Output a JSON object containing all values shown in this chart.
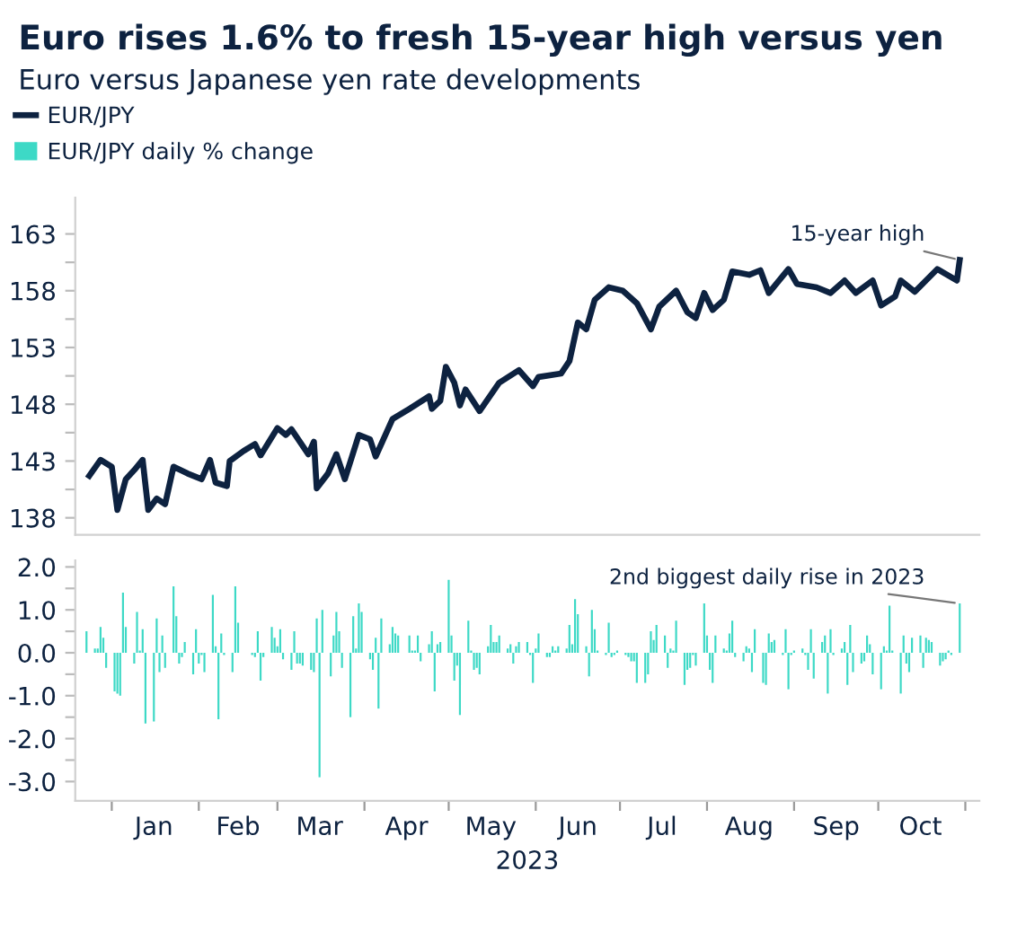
{
  "chart_data": [
    {
      "type": "line",
      "title": "Euro rises 1.6% to fresh 15-year high versus yen",
      "subtitle": "Euro versus Japanese yen rate developments",
      "legend": "top left",
      "grid": false,
      "tick_labels": "y",
      "line_style": "solid",
      "xlim": [
        "2022-12-19",
        "2023-11-06"
      ],
      "ylim": [
        136.5,
        166.2
      ],
      "yticks": [
        138,
        {
          "value": 140.5,
          "label": null
        },
        143,
        {
          "value": 145.5,
          "label": null
        },
        148,
        {
          "value": 150.5,
          "label": null
        },
        153,
        {
          "value": 155.5,
          "label": null
        },
        158,
        {
          "value": 160.5,
          "label": null
        },
        163
      ],
      "annotations": [
        {
          "text": "15-year high",
          "x": "2023-10-30",
          "y": 160.7
        }
      ],
      "series": [
        {
          "name": "EUR/JPY",
          "color": "#0d2240",
          "x": [
            "2022-12-24",
            "2022-12-28",
            "2023-01-01",
            "2023-01-03",
            "2023-01-06",
            "2023-01-09",
            "2023-01-12",
            "2023-01-14",
            "2023-01-17",
            "2023-01-20",
            "2023-01-23",
            "2023-01-28",
            "2023-02-02",
            "2023-02-05",
            "2023-02-07",
            "2023-02-11",
            "2023-02-12",
            "2023-02-17",
            "2023-02-21",
            "2023-02-23",
            "2023-03-01",
            "2023-03-04",
            "2023-03-06",
            "2023-03-12",
            "2023-03-14",
            "2023-03-15",
            "2023-03-19",
            "2023-03-22",
            "2023-03-25",
            "2023-03-30",
            "2023-04-03",
            "2023-04-05",
            "2023-04-11",
            "2023-04-17",
            "2023-04-24",
            "2023-04-25",
            "2023-04-28",
            "2023-04-30",
            "2023-05-03",
            "2023-05-05",
            "2023-05-07",
            "2023-05-12",
            "2023-05-19",
            "2023-05-26",
            "2023-05-31",
            "2023-06-02",
            "2023-06-10",
            "2023-06-13",
            "2023-06-16",
            "2023-06-19",
            "2023-06-22",
            "2023-06-27",
            "2023-07-02",
            "2023-07-07",
            "2023-07-12",
            "2023-07-15",
            "2023-07-21",
            "2023-07-25",
            "2023-07-28",
            "2023-07-31",
            "2023-08-03",
            "2023-08-07",
            "2023-08-10",
            "2023-08-16",
            "2023-08-20",
            "2023-08-23",
            "2023-08-30",
            "2023-09-02",
            "2023-09-09",
            "2023-09-14",
            "2023-09-19",
            "2023-09-23",
            "2023-09-29",
            "2023-10-02",
            "2023-10-07",
            "2023-10-09",
            "2023-10-14",
            "2023-10-22",
            "2023-10-29",
            "2023-10-30"
          ],
          "values": [
            141.7,
            143.1,
            142.5,
            138.7,
            141.4,
            142.2,
            143.1,
            138.7,
            139.7,
            139.2,
            142.5,
            141.9,
            141.4,
            143.1,
            141.1,
            140.8,
            143.0,
            143.9,
            144.5,
            143.5,
            145.9,
            145.3,
            145.8,
            143.6,
            144.7,
            140.6,
            141.9,
            143.6,
            141.4,
            145.3,
            144.9,
            143.4,
            146.7,
            147.6,
            148.7,
            147.6,
            148.3,
            151.3,
            149.9,
            147.9,
            149.3,
            147.4,
            149.9,
            151.0,
            149.6,
            150.4,
            150.7,
            151.8,
            155.2,
            154.6,
            157.2,
            158.3,
            158.0,
            156.9,
            154.6,
            156.6,
            158.0,
            156.1,
            155.6,
            157.8,
            156.3,
            157.2,
            159.7,
            159.4,
            159.8,
            157.8,
            159.9,
            158.6,
            158.3,
            157.8,
            158.9,
            157.8,
            158.9,
            156.7,
            157.5,
            158.9,
            157.9,
            159.9,
            158.9,
            160.7
          ]
        }
      ]
    },
    {
      "type": "bar",
      "xlabel": "2023",
      "legend": "top left",
      "grid": false,
      "xlim": [
        "2022-12-19",
        "2023-11-06"
      ],
      "ylim": [
        -3.45,
        2.15
      ],
      "yticks": [
        {
          "value": -3.0,
          "label": "-3.0"
        },
        {
          "value": -2.5,
          "label": null
        },
        {
          "value": -2.0,
          "label": "-2.0"
        },
        {
          "value": -1.5,
          "label": null
        },
        {
          "value": -1.0,
          "label": "-1.0"
        },
        {
          "value": -0.5,
          "label": null
        },
        {
          "value": 0,
          "label": "0.0"
        },
        {
          "value": 0.5,
          "label": null
        },
        {
          "value": 1.0,
          "label": "1.0"
        },
        {
          "value": 1.5,
          "label": null
        },
        {
          "value": 2.0,
          "label": "2.0"
        }
      ],
      "xticks": [
        {
          "value": "2023-01-01",
          "label": null
        },
        {
          "value": "2023-01-16",
          "label": "Jan"
        },
        {
          "value": "2023-02-01",
          "label": null
        },
        {
          "value": "2023-02-15",
          "label": "Feb"
        },
        {
          "value": "2023-03-01",
          "label": null
        },
        {
          "value": "2023-03-16",
          "label": "Mar"
        },
        {
          "value": "2023-04-01",
          "label": null
        },
        {
          "value": "2023-04-16",
          "label": "Apr"
        },
        {
          "value": "2023-05-01",
          "label": null
        },
        {
          "value": "2023-05-16",
          "label": "May"
        },
        {
          "value": "2023-06-01",
          "label": null
        },
        {
          "value": "2023-06-16",
          "label": "Jun"
        },
        {
          "value": "2023-07-01",
          "label": null
        },
        {
          "value": "2023-07-16",
          "label": "Jul"
        },
        {
          "value": "2023-08-01",
          "label": null
        },
        {
          "value": "2023-08-16",
          "label": "Aug"
        },
        {
          "value": "2023-09-01",
          "label": null
        },
        {
          "value": "2023-09-16",
          "label": "Sep"
        },
        {
          "value": "2023-10-01",
          "label": null
        },
        {
          "value": "2023-10-16",
          "label": "Oct"
        },
        {
          "value": "2023-11-01",
          "label": null
        }
      ],
      "annotations": [
        {
          "text": "2nd biggest daily rise in 2023",
          "x": "2023-10-30",
          "y": 1.15
        }
      ],
      "series": [
        {
          "name": "EUR/JPY daily % change",
          "color": "#3dd9c6",
          "x": [
            "2022-12-23",
            "2022-12-26",
            "2022-12-27",
            "2022-12-28",
            "2022-12-29",
            "2022-12-30",
            "2023-01-02",
            "2023-01-03",
            "2023-01-04",
            "2023-01-05",
            "2023-01-06",
            "2023-01-09",
            "2023-01-10",
            "2023-01-11",
            "2023-01-12",
            "2023-01-13",
            "2023-01-16",
            "2023-01-17",
            "2023-01-18",
            "2023-01-19",
            "2023-01-20",
            "2023-01-23",
            "2023-01-24",
            "2023-01-25",
            "2023-01-26",
            "2023-01-27",
            "2023-01-30",
            "2023-01-31",
            "2023-02-01",
            "2023-02-02",
            "2023-02-03",
            "2023-02-06",
            "2023-02-07",
            "2023-02-08",
            "2023-02-09",
            "2023-02-10",
            "2023-02-13",
            "2023-02-14",
            "2023-02-15",
            "2023-02-16",
            "2023-02-17",
            "2023-02-20",
            "2023-02-21",
            "2023-02-22",
            "2023-02-23",
            "2023-02-24",
            "2023-02-27",
            "2023-02-28",
            "2023-03-01",
            "2023-03-02",
            "2023-03-03",
            "2023-03-06",
            "2023-03-07",
            "2023-03-08",
            "2023-03-09",
            "2023-03-10",
            "2023-03-13",
            "2023-03-14",
            "2023-03-15",
            "2023-03-16",
            "2023-03-17",
            "2023-03-20",
            "2023-03-21",
            "2023-03-22",
            "2023-03-23",
            "2023-03-24",
            "2023-03-27",
            "2023-03-28",
            "2023-03-29",
            "2023-03-30",
            "2023-03-31",
            "2023-04-03",
            "2023-04-04",
            "2023-04-05",
            "2023-04-06",
            "2023-04-07",
            "2023-04-10",
            "2023-04-11",
            "2023-04-12",
            "2023-04-13",
            "2023-04-14",
            "2023-04-17",
            "2023-04-18",
            "2023-04-19",
            "2023-04-20",
            "2023-04-21",
            "2023-04-24",
            "2023-04-25",
            "2023-04-26",
            "2023-04-27",
            "2023-04-28",
            "2023-05-01",
            "2023-05-02",
            "2023-05-03",
            "2023-05-04",
            "2023-05-05",
            "2023-05-08",
            "2023-05-09",
            "2023-05-10",
            "2023-05-11",
            "2023-05-12",
            "2023-05-15",
            "2023-05-16",
            "2023-05-17",
            "2023-05-18",
            "2023-05-19",
            "2023-05-22",
            "2023-05-23",
            "2023-05-24",
            "2023-05-25",
            "2023-05-26",
            "2023-05-29",
            "2023-05-30",
            "2023-05-31",
            "2023-06-01",
            "2023-06-02",
            "2023-06-05",
            "2023-06-06",
            "2023-06-07",
            "2023-06-08",
            "2023-06-09",
            "2023-06-12",
            "2023-06-13",
            "2023-06-14",
            "2023-06-15",
            "2023-06-16",
            "2023-06-19",
            "2023-06-20",
            "2023-06-21",
            "2023-06-22",
            "2023-06-23",
            "2023-06-26",
            "2023-06-27",
            "2023-06-28",
            "2023-06-29",
            "2023-06-30",
            "2023-07-03",
            "2023-07-04",
            "2023-07-05",
            "2023-07-06",
            "2023-07-07",
            "2023-07-10",
            "2023-07-11",
            "2023-07-12",
            "2023-07-13",
            "2023-07-14",
            "2023-07-17",
            "2023-07-18",
            "2023-07-19",
            "2023-07-20",
            "2023-07-21",
            "2023-07-24",
            "2023-07-25",
            "2023-07-26",
            "2023-07-27",
            "2023-07-28",
            "2023-07-31",
            "2023-08-01",
            "2023-08-02",
            "2023-08-03",
            "2023-08-04",
            "2023-08-07",
            "2023-08-08",
            "2023-08-09",
            "2023-08-10",
            "2023-08-11",
            "2023-08-14",
            "2023-08-15",
            "2023-08-16",
            "2023-08-17",
            "2023-08-18",
            "2023-08-21",
            "2023-08-22",
            "2023-08-23",
            "2023-08-24",
            "2023-08-25",
            "2023-08-28",
            "2023-08-29",
            "2023-08-30",
            "2023-08-31",
            "2023-09-01",
            "2023-09-04",
            "2023-09-05",
            "2023-09-06",
            "2023-09-07",
            "2023-09-08",
            "2023-09-11",
            "2023-09-12",
            "2023-09-13",
            "2023-09-14",
            "2023-09-15",
            "2023-09-18",
            "2023-09-19",
            "2023-09-20",
            "2023-09-21",
            "2023-09-22",
            "2023-09-25",
            "2023-09-26",
            "2023-09-27",
            "2023-09-28",
            "2023-09-29",
            "2023-10-02",
            "2023-10-03",
            "2023-10-04",
            "2023-10-05",
            "2023-10-06",
            "2023-10-09",
            "2023-10-10",
            "2023-10-11",
            "2023-10-12",
            "2023-10-13",
            "2023-10-16",
            "2023-10-17",
            "2023-10-18",
            "2023-10-19",
            "2023-10-20",
            "2023-10-23",
            "2023-10-24",
            "2023-10-25",
            "2023-10-26",
            "2023-10-27",
            "2023-10-30"
          ],
          "values": [
            0.5,
            0.1,
            0.1,
            0.6,
            0.35,
            -0.35,
            -0.9,
            -0.95,
            -1.0,
            1.4,
            0.6,
            -0.25,
            0.95,
            0.05,
            0.55,
            -1.65,
            -1.6,
            0.8,
            -0.45,
            0.4,
            -0.35,
            1.55,
            0.85,
            -0.25,
            -0.1,
            0.25,
            -0.5,
            0.55,
            -0.25,
            -0.05,
            -0.45,
            1.35,
            0.15,
            -1.55,
            0.45,
            -0.05,
            -0.45,
            1.55,
            0.7,
            0.0,
            0.0,
            -0.05,
            -0.1,
            0.5,
            -0.65,
            -0.1,
            0.6,
            0.35,
            0.15,
            0.55,
            -0.15,
            -0.4,
            0.5,
            -0.25,
            -0.25,
            -0.3,
            -0.4,
            -0.45,
            0.8,
            -2.9,
            1.0,
            -0.55,
            0.4,
            0.95,
            0.5,
            -0.35,
            -1.5,
            0.85,
            0.1,
            1.15,
            0.95,
            -0.15,
            -0.4,
            0.35,
            -1.3,
            0.8,
            0.2,
            0.6,
            0.45,
            0.4,
            0.0,
            0.4,
            0.05,
            0.05,
            0.4,
            -0.2,
            0.2,
            0.5,
            -0.9,
            0.2,
            0.25,
            1.7,
            0.4,
            -0.65,
            -0.3,
            -1.45,
            0.75,
            0.05,
            -0.4,
            -0.35,
            -0.5,
            0.15,
            0.65,
            0.25,
            0.25,
            0.4,
            0.1,
            0.2,
            -0.25,
            0.15,
            0.25,
            0.25,
            -0.05,
            -0.7,
            0.1,
            0.45,
            -0.1,
            -0.1,
            0.15,
            0.05,
            0.15,
            0.1,
            0.65,
            0.2,
            1.25,
            0.9,
            0.15,
            -0.55,
            1.0,
            0.55,
            0.05,
            -0.05,
            0.7,
            -0.1,
            -0.05,
            0.05,
            -0.05,
            -0.1,
            -0.2,
            -0.2,
            -0.7,
            -0.7,
            -0.5,
            0.5,
            0.3,
            0.65,
            0.4,
            -0.35,
            0.1,
            0.05,
            0.75,
            -0.75,
            -0.4,
            -0.35,
            -0.05,
            -0.3,
            1.15,
            0.4,
            -0.4,
            -0.7,
            0.4,
            0.1,
            0.05,
            0.45,
            0.75,
            -0.1,
            -0.2,
            0.15,
            0.1,
            -0.45,
            0.55,
            -0.7,
            -0.75,
            0.45,
            0.25,
            0.3,
            -0.05,
            0.55,
            -0.85,
            -0.05,
            0.05,
            0.1,
            -0.05,
            -0.4,
            0.55,
            -0.6,
            0.25,
            0.4,
            -0.95,
            0.55,
            -0.05,
            0.1,
            0.25,
            -0.75,
            0.65,
            -0.45,
            -0.25,
            -0.2,
            0.4,
            0.2,
            -0.5,
            -0.85,
            0.15,
            0.05,
            1.1,
            0.05,
            -0.95,
            0.4,
            -0.25,
            -0.45,
            0.35,
            0.4,
            -0.35,
            0.35,
            0.3,
            0.25,
            -0.3,
            -0.2,
            -0.15,
            0.05,
            -0.05,
            1.15
          ]
        }
      ]
    }
  ]
}
